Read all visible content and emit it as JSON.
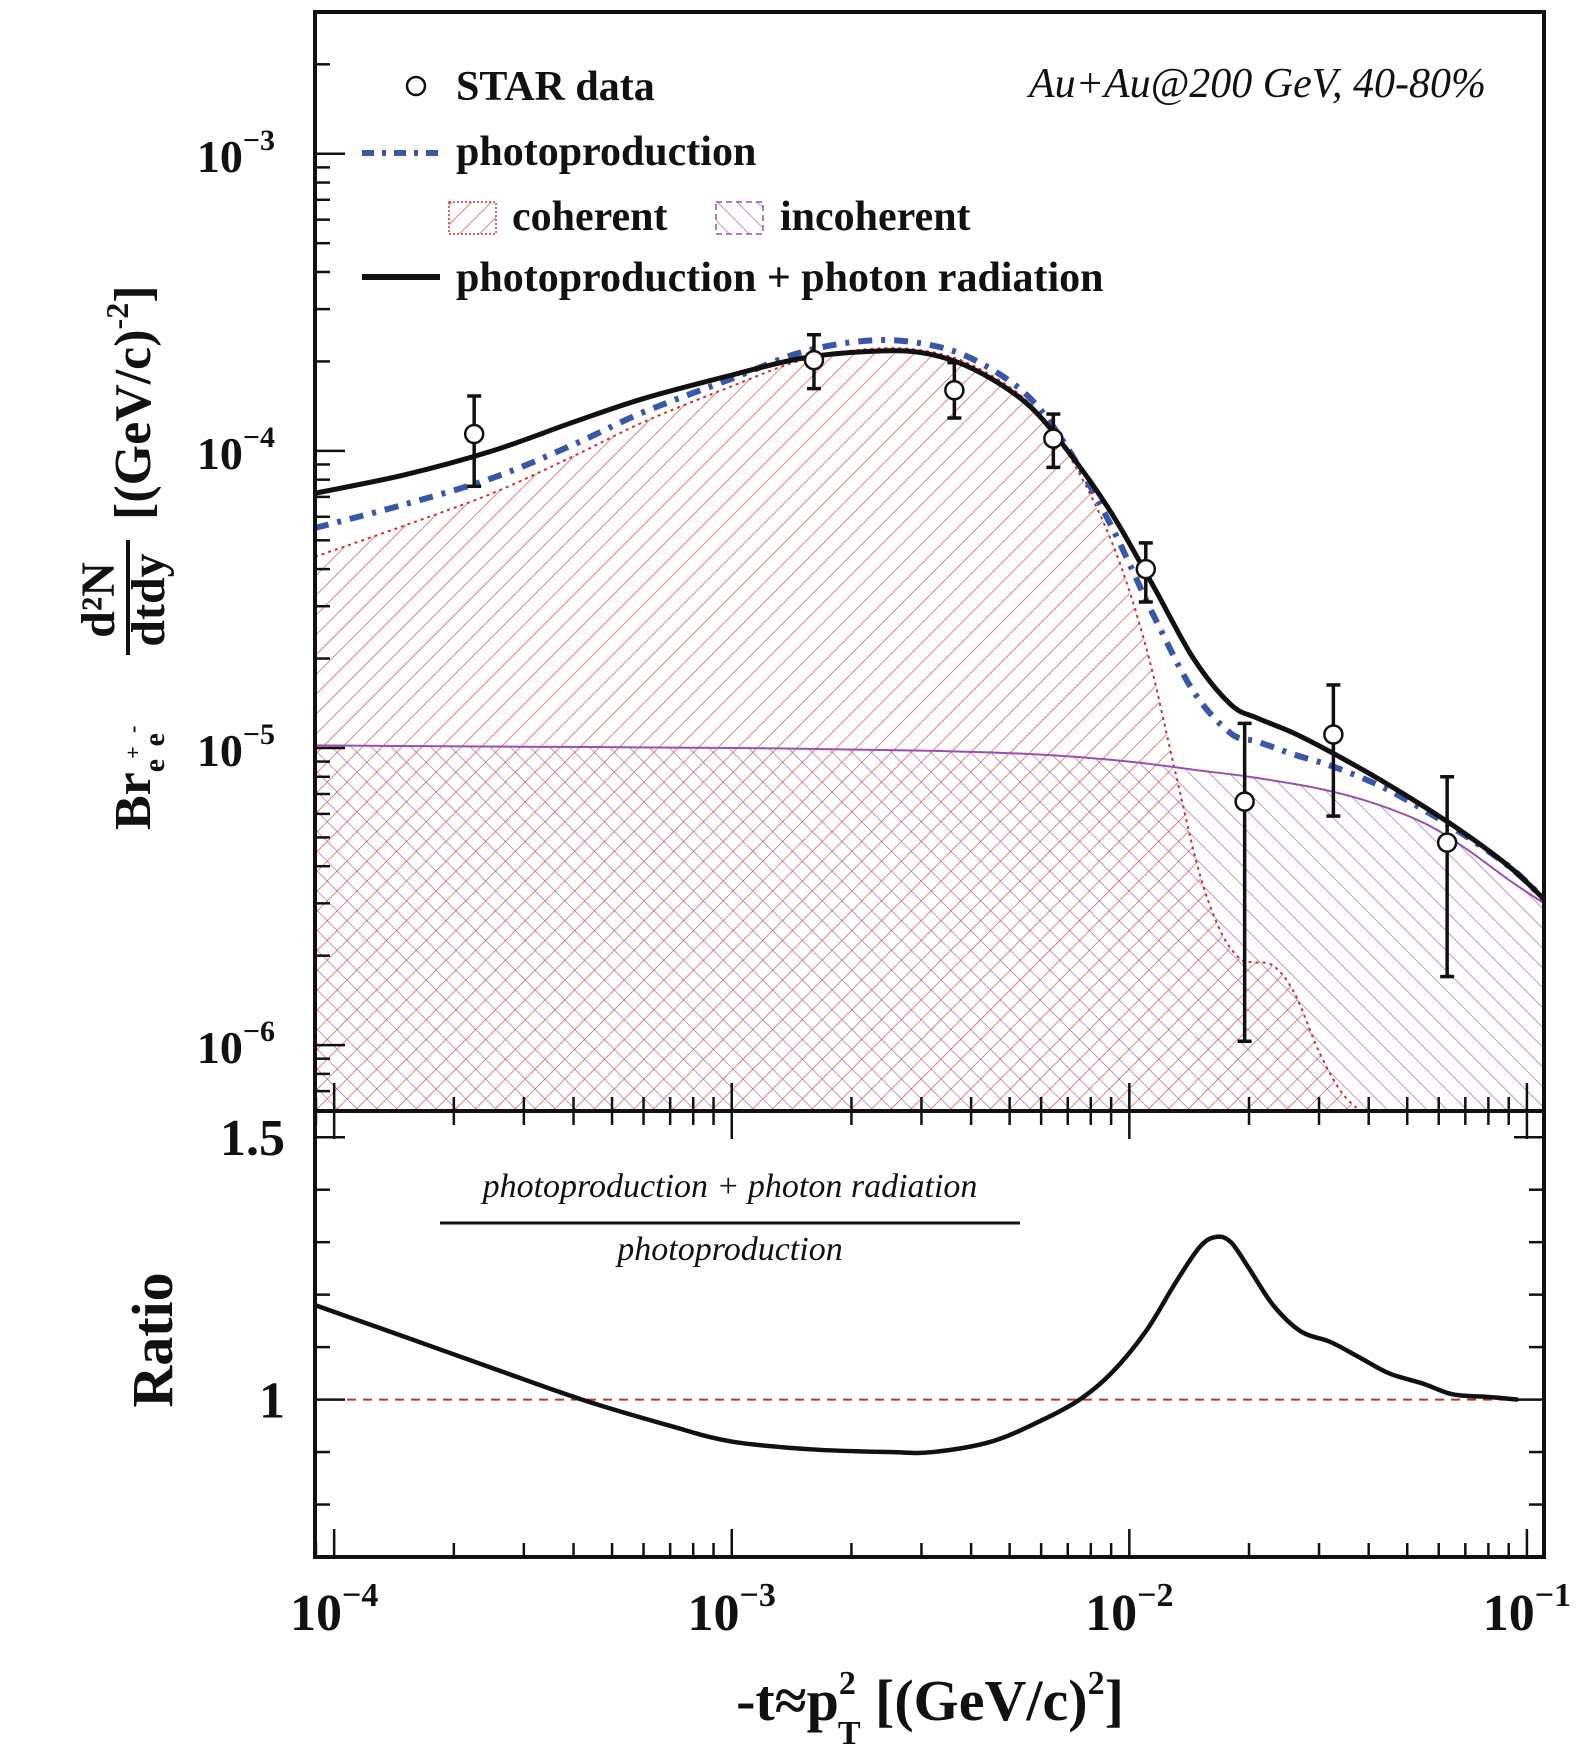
{
  "chart_data": [
    {
      "panel": "upper",
      "type": "scatter",
      "title": "",
      "annotation": "Au+Au@200 GeV, 40-80%",
      "xlabel": "-t≈p_T^2 [(GeV/c)^2]",
      "ylabel": "Br_{e+e-} d²N/dtdy [(GeV/c)^-2]",
      "ylabel_parts": {
        "prefix": "Br",
        "sub": "e",
        "sup1": "+",
        "sub2": "e",
        "sup2": "-",
        "num": "d²N",
        "den": "dtdy",
        "unit": "[(GeV/c)",
        "unit_exp": "-2",
        "unit_close": "]"
      },
      "xscale": "log",
      "yscale": "log",
      "xlim": [
        8.95e-05,
        0.1104
      ],
      "ylim": [
        6e-07,
        0.003
      ],
      "grid": false,
      "legend_position": "top-left",
      "y_ticks": [
        {
          "value": 0.001,
          "base": "10",
          "exp": "−3"
        },
        {
          "value": 0.0001,
          "base": "10",
          "exp": "−4"
        },
        {
          "value": 1e-05,
          "base": "10",
          "exp": "−5"
        },
        {
          "value": 1e-06,
          "base": "10",
          "exp": "−6"
        }
      ],
      "legend": [
        {
          "label": "STAR data",
          "marker": "open-circle"
        },
        {
          "label": "photoproduction",
          "style": "dash-dot",
          "color": "#3a56a8"
        },
        {
          "label": "coherent",
          "style": "hatch",
          "color": "#d0302f"
        },
        {
          "label": "incoherent",
          "style": "hatch",
          "color": "#9a4fb0"
        },
        {
          "label": "photoproduction + photon radiation",
          "style": "solid",
          "color": "#111111"
        }
      ],
      "series": [
        {
          "name": "STAR data",
          "type": "points",
          "x": [
            0.000225,
            0.00161,
            0.00363,
            0.00644,
            0.011,
            0.0195,
            0.0326,
            0.063
          ],
          "y": [
            0.000114,
            0.000202,
            0.00016,
            0.00011,
            4e-05,
            6.6e-06,
            1.11e-05,
            4.8e-06
          ],
          "y_err_high": [
            0.000153,
            0.000246,
            0.000198,
            0.000133,
            4.9e-05,
            1.21e-05,
            1.63e-05,
            8e-06
          ],
          "y_err_low": [
            7.6e-05,
            0.000162,
            0.000129,
            8.8e-05,
            3.1e-05,
            1.03e-06,
            5.9e-06,
            1.7e-06
          ]
        },
        {
          "name": "photoproduction + photon radiation",
          "type": "line",
          "x": [
            8.95e-05,
            0.00015,
            0.00025,
            0.0004,
            0.0006,
            0.001,
            0.0015,
            0.0022,
            0.003,
            0.004,
            0.0055,
            0.007,
            0.009,
            0.0115,
            0.0145,
            0.018,
            0.021,
            0.026,
            0.033,
            0.045,
            0.065,
            0.09,
            0.1104
          ],
          "y": [
            7.2e-05,
            8.3e-05,
            0.0001,
            0.000125,
            0.00015,
            0.00018,
            0.000205,
            0.000216,
            0.000214,
            0.00019,
            0.000145,
            0.0001,
            6.2e-05,
            3.5e-05,
            2e-05,
            1.4e-05,
            1.26e-05,
            1.12e-05,
            9.5e-06,
            7.5e-06,
            5.5e-06,
            4e-06,
            3.1e-06
          ]
        },
        {
          "name": "photoproduction",
          "type": "line",
          "x": [
            8.95e-05,
            0.00015,
            0.00025,
            0.0004,
            0.0006,
            0.001,
            0.0015,
            0.0022,
            0.003,
            0.004,
            0.0055,
            0.007,
            0.009,
            0.0115,
            0.0145,
            0.018,
            0.021,
            0.026,
            0.033,
            0.045,
            0.065,
            0.09,
            0.1104
          ],
          "y": [
            5.5e-05,
            6.6e-05,
            8.1e-05,
            0.000105,
            0.000135,
            0.000175,
            0.000215,
            0.000235,
            0.00023,
            0.000205,
            0.000155,
            0.000102,
            5.6e-05,
            2.8e-05,
            1.55e-05,
            1.12e-05,
            1.05e-05,
            9.5e-06,
            8.6e-06,
            7.2e-06,
            5.4e-06,
            4e-06,
            3.1e-06
          ]
        },
        {
          "name": "coherent",
          "type": "area",
          "x": [
            8.95e-05,
            0.00015,
            0.00025,
            0.0004,
            0.0006,
            0.001,
            0.0015,
            0.0022,
            0.003,
            0.004,
            0.0055,
            0.007,
            0.009,
            0.011,
            0.013,
            0.015,
            0.017,
            0.019,
            0.0205,
            0.023,
            0.026,
            0.03,
            0.034,
            0.038
          ],
          "y": [
            4.4e-05,
            5.6e-05,
            7.2e-05,
            9.6e-05,
            0.000125,
            0.000165,
            0.000202,
            0.00022,
            0.000218,
            0.000195,
            0.000148,
            9.8e-05,
            5e-05,
            2.2e-05,
            8.5e-06,
            3.8e-06,
            2.4e-06,
            1.95e-06,
            1.9e-06,
            1.85e-06,
            1.5e-06,
            9.5e-07,
            7e-07,
            6e-07
          ]
        },
        {
          "name": "incoherent",
          "type": "area",
          "x": [
            8.95e-05,
            0.0003,
            0.001,
            0.003,
            0.006,
            0.01,
            0.015,
            0.02,
            0.03,
            0.04,
            0.055,
            0.07,
            0.09,
            0.1104
          ],
          "y": [
            1.02e-05,
            1.01e-05,
            1e-05,
            9.8e-06,
            9.5e-06,
            9e-06,
            8.4e-06,
            8e-06,
            7.3e-06,
            6.6e-06,
            5.6e-06,
            4.6e-06,
            3.6e-06,
            3e-06
          ]
        }
      ]
    },
    {
      "panel": "lower",
      "type": "line",
      "title": "",
      "ylabel": "Ratio",
      "xlabel": "-t≈p_T^2 [(GeV/c)^2]",
      "xlabel_parts": {
        "pre": "-t≈p",
        "sup": "2",
        "sub": "T",
        "post": " [(GeV/c)",
        "post_sup": "2",
        "close": "]"
      },
      "xscale": "log",
      "xlim": [
        8.95e-05,
        0.1104
      ],
      "ylim": [
        0.7,
        1.55
      ],
      "grid": false,
      "annotation_numerator": "photoproduction + photon radiation",
      "annotation_denominator": "photoproduction",
      "y_ticks": [
        {
          "value": 1.5,
          "label": "1.5"
        },
        {
          "value": 1.0,
          "label": "1"
        }
      ],
      "x_ticks": [
        {
          "value": 0.0001,
          "base": "10",
          "exp": "−4"
        },
        {
          "value": 0.001,
          "base": "10",
          "exp": "−3"
        },
        {
          "value": 0.01,
          "base": "10",
          "exp": "−2"
        },
        {
          "value": 0.1,
          "base": "10",
          "exp": "−1"
        }
      ],
      "reference_line": {
        "y": 1.0,
        "style": "dashed",
        "color": "#b03a3a"
      },
      "series": [
        {
          "name": "photoproduction + photon radiation / photoproduction",
          "x": [
            8.95e-05,
            0.00015,
            0.00025,
            0.00042,
            0.0007,
            0.001,
            0.0016,
            0.0025,
            0.0032,
            0.0045,
            0.006,
            0.0075,
            0.009,
            0.011,
            0.013,
            0.015,
            0.0165,
            0.018,
            0.02,
            0.023,
            0.027,
            0.032,
            0.038,
            0.045,
            0.055,
            0.065,
            0.08,
            0.095
          ],
          "y": [
            1.18,
            1.12,
            1.06,
            1.0,
            0.95,
            0.92,
            0.905,
            0.9,
            0.9,
            0.92,
            0.96,
            1.0,
            1.05,
            1.13,
            1.22,
            1.29,
            1.31,
            1.3,
            1.25,
            1.18,
            1.13,
            1.11,
            1.08,
            1.05,
            1.03,
            1.01,
            1.005,
            1.0
          ]
        }
      ]
    }
  ]
}
